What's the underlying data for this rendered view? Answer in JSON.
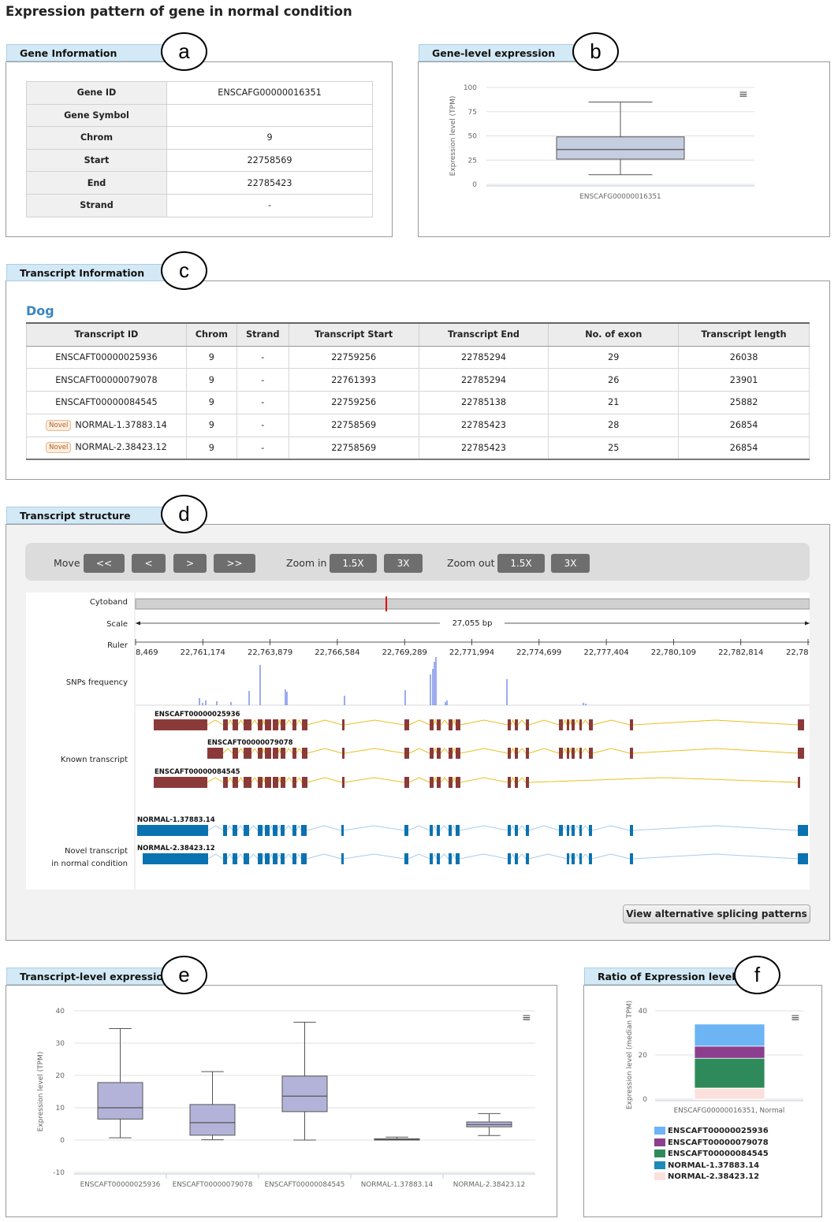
{
  "page_title": "Expression pattern of gene in normal condition",
  "panels": {
    "gene_info": "Gene Information",
    "gene_level": "Gene-level expression",
    "transcript_info": "Transcript Information",
    "transcript_structure": "Transcript structure",
    "transcript_level": "Transcript-level expression",
    "ratio": "Ratio of Expression levels"
  },
  "circle_labels": [
    "a",
    "b",
    "c",
    "d",
    "e",
    "f"
  ],
  "gene_info": {
    "rows": [
      {
        "key": "Gene ID",
        "value": "ENSCAFG00000016351"
      },
      {
        "key": "Gene Symbol",
        "value": ""
      },
      {
        "key": "Chrom",
        "value": "9"
      },
      {
        "key": "Start",
        "value": "22758569"
      },
      {
        "key": "End",
        "value": "22785423"
      },
      {
        "key": "Strand",
        "value": "-"
      }
    ]
  },
  "species": "Dog",
  "transcript_table": {
    "headers": [
      "Transcript ID",
      "Chrom",
      "Strand",
      "Transcript Start",
      "Transcript End",
      "No. of exon",
      "Transcript length"
    ],
    "novel_label": "Novel",
    "rows": [
      {
        "id": "ENSCAFT00000025936",
        "novel": false,
        "chrom": "9",
        "strand": "-",
        "start": "22759256",
        "end": "22785294",
        "exons": "29",
        "length": "26038"
      },
      {
        "id": "ENSCAFT00000079078",
        "novel": false,
        "chrom": "9",
        "strand": "-",
        "start": "22761393",
        "end": "22785294",
        "exons": "26",
        "length": "23901"
      },
      {
        "id": "ENSCAFT00000084545",
        "novel": false,
        "chrom": "9",
        "strand": "-",
        "start": "22759256",
        "end": "22785138",
        "exons": "21",
        "length": "25882"
      },
      {
        "id": "NORMAL-1.37883.14",
        "novel": true,
        "chrom": "9",
        "strand": "-",
        "start": "22758569",
        "end": "22785423",
        "exons": "28",
        "length": "26854"
      },
      {
        "id": "NORMAL-2.38423.12",
        "novel": true,
        "chrom": "9",
        "strand": "-",
        "start": "22758569",
        "end": "22785423",
        "exons": "25",
        "length": "26854"
      }
    ]
  },
  "controls": {
    "move_label": "Move",
    "move_buttons": [
      "<<",
      "<",
      ">",
      ">>"
    ],
    "zoom_in_label": "Zoom in",
    "zoom_in_buttons": [
      "1.5X",
      "3X"
    ],
    "zoom_out_label": "Zoom out",
    "zoom_out_buttons": [
      "1.5X",
      "3X"
    ]
  },
  "browser": {
    "labels": {
      "cytoband": "Cytoband",
      "scale": "Scale",
      "ruler": "Ruler",
      "snps": "SNPs frequency",
      "known": "Known transcript",
      "novel_line1": "Novel transcript",
      "novel_line2": "in normal condition"
    },
    "scale_text": "27,055 bp",
    "ruler_ticks": [
      "8,469",
      "22,761,174",
      "22,763,879",
      "22,766,584",
      "22,769,289",
      "22,771,994",
      "22,774,699",
      "22,777,404",
      "22,780,109",
      "22,782,814",
      "22,78"
    ],
    "known_transcripts": [
      "ENSCAFT00000025936",
      "ENSCAFT00000079078",
      "ENSCAFT00000084545"
    ],
    "novel_transcripts": [
      "NORMAL-1.37883.14",
      "NORMAL-2.38423.12"
    ],
    "colors": {
      "known_exon": "#8b3a3a",
      "known_intron": "#e8c020",
      "novel_exon": "#0a72b0",
      "novel_intron": "#a8cdea",
      "snp": "#3a5adf",
      "cytoband_mark": "#e01010"
    }
  },
  "splice_button": "View alternative splicing patterns",
  "chart_data": [
    {
      "type": "box",
      "title": "",
      "ylabel": "Expression level (TPM)",
      "ylim": [
        0,
        100
      ],
      "yticks": [
        0,
        25,
        50,
        75,
        100
      ],
      "categories": [
        "ENSCAFG00000016351"
      ],
      "boxes": [
        {
          "min": 10,
          "q1": 26,
          "median": 36,
          "q3": 49,
          "max": 85
        }
      ],
      "color": "#c5cde0"
    },
    {
      "type": "box",
      "title": "",
      "ylabel": "Expression level (TPM)",
      "ylim": [
        -10,
        40
      ],
      "yticks": [
        -10,
        0,
        10,
        20,
        30,
        40
      ],
      "categories": [
        "ENSCAFT00000025936",
        "ENSCAFT00000079078",
        "ENSCAFT00000084545",
        "NORMAL-1.37883.14",
        "NORMAL-2.38423.12"
      ],
      "boxes": [
        {
          "min": 0.7,
          "q1": 6.5,
          "median": 10,
          "q3": 17.8,
          "max": 34.5
        },
        {
          "min": 0.1,
          "q1": 1.5,
          "median": 5.4,
          "q3": 11,
          "max": 21.2
        },
        {
          "min": 0,
          "q1": 8.8,
          "median": 13.6,
          "q3": 19.8,
          "max": 36.5
        },
        {
          "min": 0,
          "q1": 0,
          "median": 0.2,
          "q3": 0.4,
          "max": 0.9
        },
        {
          "min": 1.4,
          "q1": 4.1,
          "median": 4.8,
          "q3": 5.6,
          "max": 8.2
        }
      ],
      "color": "#b3b3da"
    },
    {
      "type": "bar",
      "stacked": true,
      "title": "",
      "ylabel": "Expression level (median TPM)",
      "ylim": [
        0,
        40
      ],
      "yticks": [
        0,
        20,
        40
      ],
      "categories": [
        "ENSCAFG00000016351, Normal"
      ],
      "series": [
        {
          "name": "ENSCAFT00000025936",
          "values": [
            10
          ],
          "color": "#6cb4f4"
        },
        {
          "name": "ENSCAFT00000079078",
          "values": [
            5.5
          ],
          "color": "#8b3f8e"
        },
        {
          "name": "ENSCAFT00000084545",
          "values": [
            13.5
          ],
          "color": "#2e8a5a"
        },
        {
          "name": "NORMAL-1.37883.14",
          "values": [
            0.2
          ],
          "color": "#1a8ab8"
        },
        {
          "name": "NORMAL-2.38423.12",
          "values": [
            4.8
          ],
          "color": "#fbe0dc"
        }
      ],
      "legend": "bottom"
    }
  ]
}
